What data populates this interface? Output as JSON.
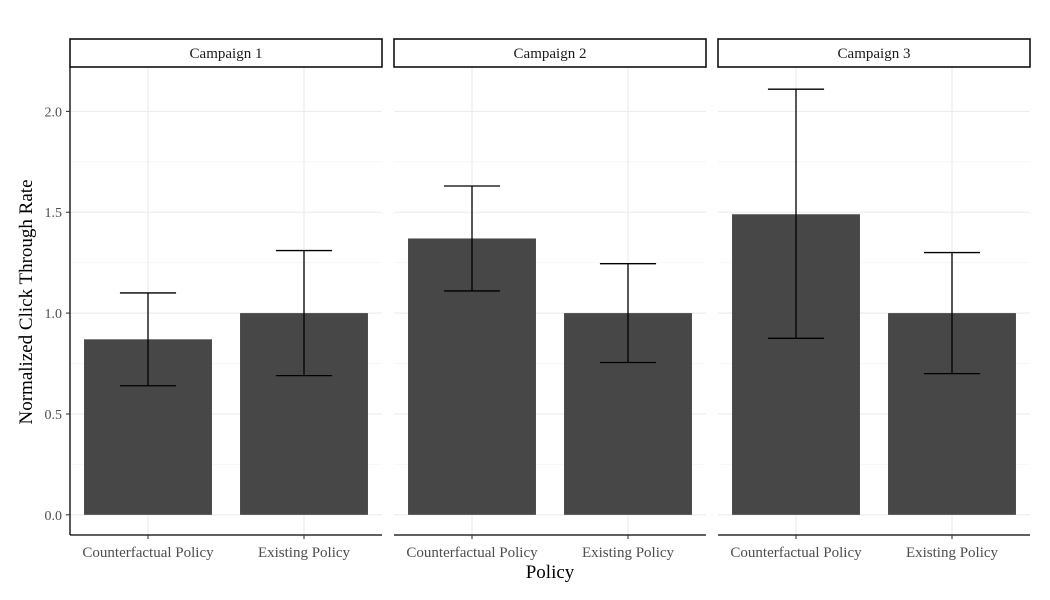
{
  "chart_data": {
    "type": "bar",
    "title": "",
    "xlabel": "Policy",
    "ylabel": "Normalized Click Through Rate",
    "ylim": [
      -0.1,
      2.22
    ],
    "yticks": [
      "0.0",
      "0.5",
      "1.0",
      "1.5",
      "2.0"
    ],
    "grid": true,
    "bar_color": "#474747",
    "categories": [
      "Counterfactual Policy",
      "Existing Policy"
    ],
    "panels": [
      {
        "name": "Campaign 1",
        "values": [
          0.87,
          1.0
        ],
        "error_low": [
          0.64,
          0.69
        ],
        "error_high": [
          1.1,
          1.31
        ]
      },
      {
        "name": "Campaign 2",
        "values": [
          1.37,
          1.0
        ],
        "error_low": [
          1.11,
          0.755
        ],
        "error_high": [
          1.63,
          1.245
        ]
      },
      {
        "name": "Campaign 3",
        "values": [
          1.49,
          1.0
        ],
        "error_low": [
          0.875,
          0.7
        ],
        "error_high": [
          2.11,
          1.3
        ]
      }
    ]
  }
}
